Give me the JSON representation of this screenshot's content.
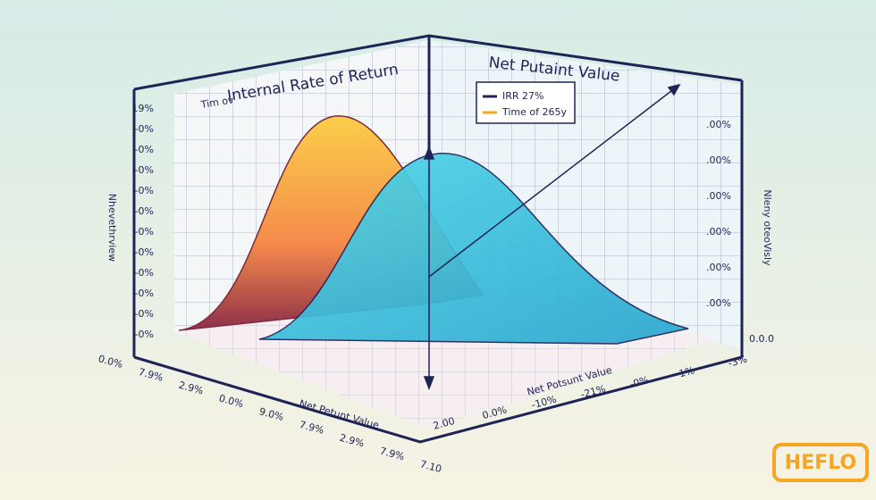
{
  "title": "Internal Rate of Return",
  "top_right_label": "Net Putaint Value",
  "top_left_tag": "Tim ov",
  "legend": [
    "IRR 27%",
    "Time of 265y"
  ],
  "left_axis_label": "Nhevethrview",
  "right_axis_label": "Nleny oteoVisly",
  "bottom_left_label": "Net Petunt Value",
  "bottom_right_label": "Net Potsunt Value",
  "left_ticks": [
    "19%",
    "-0%",
    "-0%",
    "-0%",
    "-0%",
    "-0%",
    "-0%",
    "-0%",
    "-0%",
    "-0%",
    "-0%",
    "-0%"
  ],
  "right_ticks": [
    ".00%",
    ".00%",
    ".00%",
    ".00%",
    ".00%",
    ".00%",
    "0.0.0"
  ],
  "bottom_left_ticks": [
    "0.0%",
    "7.9%",
    "2.9%",
    "0.0%",
    "9.0%",
    "7.9%",
    "2.9%",
    "7.9%",
    "7.10"
  ],
  "bottom_right_ticks": [
    "2.00",
    "0.0%",
    "-10%",
    "-21%",
    "-0%",
    "1%",
    "-3%"
  ],
  "logo": "HEFLO"
}
